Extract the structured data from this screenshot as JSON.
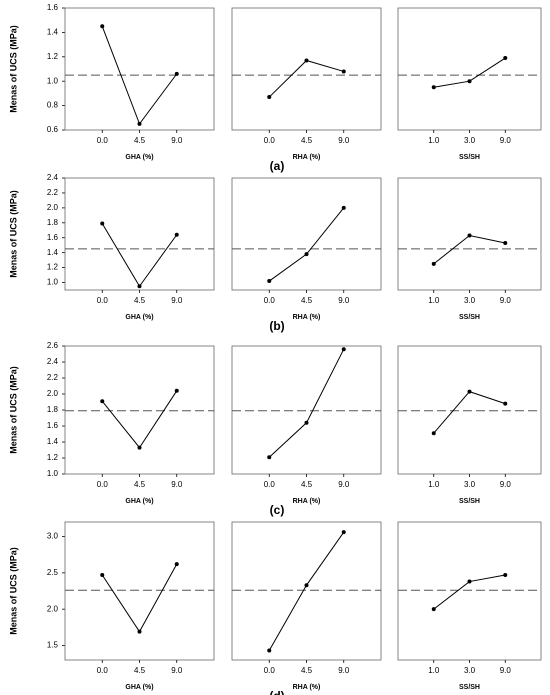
{
  "chart_data": [
    {
      "type": "line",
      "label": "(a)",
      "ylabel": "Menas of UCS (MPa)",
      "ylim": [
        0.6,
        1.6
      ],
      "yticks": [
        0.6,
        0.8,
        {
          "value": 1.0,
          "label": "1.0"
        },
        1.2,
        1.4,
        1.6
      ],
      "reference_line": 1.05,
      "panels": [
        {
          "xlabel": "GHA (%)",
          "categories": [
            "0.0",
            "4.5",
            "9.0"
          ],
          "values": [
            1.45,
            0.65,
            1.06
          ]
        },
        {
          "xlabel": "RHA (%)",
          "categories": [
            "0.0",
            "4.5",
            "9.0"
          ],
          "values": [
            0.87,
            1.17,
            1.08
          ]
        },
        {
          "xlabel": "SS/SH",
          "categories": [
            "1.0",
            "3.0",
            "9.0"
          ],
          "values": [
            0.95,
            1.0,
            1.19
          ]
        }
      ]
    },
    {
      "type": "line",
      "label": "(b)",
      "ylabel": "Menas of UCS (MPa)",
      "ylim": [
        0.9,
        2.4
      ],
      "yticks": [
        {
          "value": 1.0,
          "label": "1.0"
        },
        1.2,
        1.4,
        1.6,
        1.8,
        {
          "value": 2.0,
          "label": "2.0"
        },
        2.2,
        2.4
      ],
      "reference_line": 1.45,
      "panels": [
        {
          "xlabel": "GHA (%)",
          "categories": [
            "0.0",
            "4.5",
            "9.0"
          ],
          "values": [
            1.79,
            0.95,
            1.64
          ]
        },
        {
          "xlabel": "RHA (%)",
          "categories": [
            "0.0",
            "4.5",
            "9.0"
          ],
          "values": [
            1.02,
            1.38,
            2.0
          ]
        },
        {
          "xlabel": "SS/SH",
          "categories": [
            "1.0",
            "3.0",
            "9.0"
          ],
          "values": [
            1.25,
            1.63,
            1.53
          ]
        }
      ]
    },
    {
      "type": "line",
      "label": "(c)",
      "ylabel": "Menas of UCS (MPa)",
      "ylim": [
        1.0,
        2.6
      ],
      "yticks": [
        {
          "value": 1.0,
          "label": "1.0"
        },
        1.2,
        1.4,
        1.6,
        1.8,
        {
          "value": 2.0,
          "label": "2.0"
        },
        2.2,
        2.4,
        2.6
      ],
      "reference_line": 1.79,
      "panels": [
        {
          "xlabel": "GHA (%)",
          "categories": [
            "0.0",
            "4.5",
            "9.0"
          ],
          "values": [
            1.91,
            1.33,
            2.04
          ]
        },
        {
          "xlabel": "RHA (%)",
          "categories": [
            "0.0",
            "4.5",
            "9.0"
          ],
          "values": [
            1.21,
            1.64,
            2.56
          ]
        },
        {
          "xlabel": "SS/SH",
          "categories": [
            "1.0",
            "3.0",
            "9.0"
          ],
          "values": [
            1.51,
            2.03,
            1.88
          ]
        }
      ]
    },
    {
      "type": "line",
      "label": "(d)",
      "ylabel": "Menas of UCS (MPa)",
      "ylim": [
        1.3,
        3.2
      ],
      "yticks": [
        1.5,
        {
          "value": 2.0,
          "label": "2.0"
        },
        2.5,
        {
          "value": 3.0,
          "label": "3.0"
        }
      ],
      "reference_line": 2.26,
      "panels": [
        {
          "xlabel": "GHA (%)",
          "categories": [
            "0.0",
            "4.5",
            "9.0"
          ],
          "values": [
            2.47,
            1.69,
            2.62
          ]
        },
        {
          "xlabel": "RHA (%)",
          "categories": [
            "0.0",
            "4.5",
            "9.0"
          ],
          "values": [
            1.43,
            2.33,
            3.06
          ]
        },
        {
          "xlabel": "SS/SH",
          "categories": [
            "1.0",
            "3.0",
            "9.0"
          ],
          "values": [
            2.0,
            2.38,
            2.47
          ]
        }
      ]
    }
  ]
}
